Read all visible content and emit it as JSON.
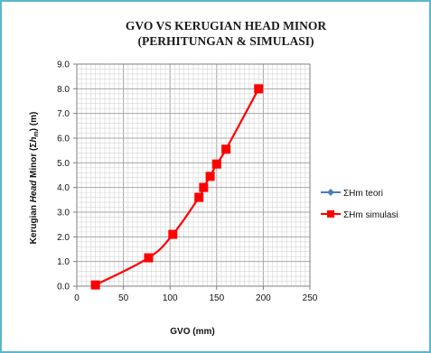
{
  "chart_data": {
    "type": "line",
    "title": "GVO VS KERUGIAN HEAD MINOR",
    "subtitle": "(PERHITUNGAN & SIMULASI)",
    "xlabel": "GVO (mm)",
    "ylabel": {
      "part1": "Kerugian ",
      "part2": "Head",
      "part3": " Minor (Σ",
      "part4": "h",
      "part5": "m",
      "part6": ") (m)"
    },
    "xlim": [
      0,
      250
    ],
    "ylim": [
      0,
      9
    ],
    "x_ticks": [
      "0",
      "50",
      "100",
      "150",
      "200",
      "250"
    ],
    "y_ticks": [
      "0.0",
      "1.0",
      "2.0",
      "3.0",
      "4.0",
      "5.0",
      "6.0",
      "7.0",
      "8.0",
      "9.0"
    ],
    "grid": true,
    "legend_position": "right",
    "series": [
      {
        "name": "ΣHm teori",
        "color": "#4a7ebb",
        "marker": "diamond",
        "x": [],
        "y": []
      },
      {
        "name": "ΣHm simulasi",
        "color": "#ff0000",
        "marker": "square",
        "x": [
          20,
          77,
          103,
          131,
          136,
          143,
          150,
          160,
          195
        ],
        "y": [
          0.05,
          1.15,
          2.1,
          3.6,
          4.0,
          4.45,
          4.95,
          5.55,
          8.0
        ]
      }
    ]
  }
}
